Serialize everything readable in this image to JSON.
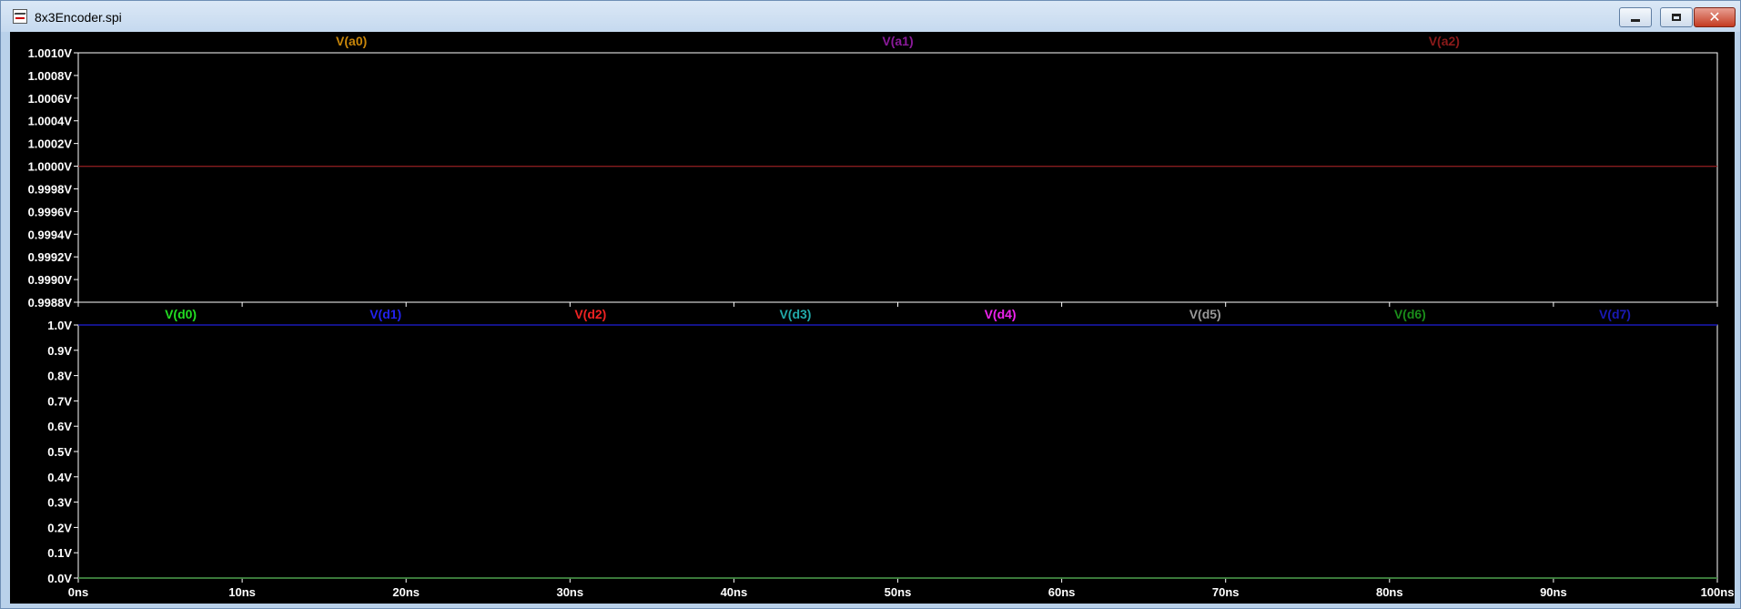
{
  "window": {
    "title": "8x3Encoder.spi",
    "icon": "ltspice-waveform-icon",
    "controls": {
      "minimize": "minimize-icon",
      "maximize": "maximize-icon",
      "close": "✕"
    }
  },
  "chart_data": [
    {
      "type": "line",
      "title": "",
      "xlabel": "",
      "ylabel": "",
      "x_unit": "ns",
      "y_unit": "V",
      "xlim": [
        0,
        100
      ],
      "ylim": [
        0.9988,
        1.001
      ],
      "xticks": [
        "0ns",
        "10ns",
        "20ns",
        "30ns",
        "40ns",
        "50ns",
        "60ns",
        "70ns",
        "80ns",
        "90ns",
        "100ns"
      ],
      "yticks": [
        "1.0010V",
        "1.0008V",
        "1.0006V",
        "1.0004V",
        "1.0002V",
        "1.0000V",
        "0.9998V",
        "0.9996V",
        "0.9994V",
        "0.9992V",
        "0.9990V",
        "0.9988V"
      ],
      "grid": false,
      "legend": "top",
      "series": [
        {
          "name": "V(a0)",
          "color": "#c8860a",
          "x": [
            0,
            100
          ],
          "y": [
            1.0,
            1.0
          ]
        },
        {
          "name": "V(a1)",
          "color": "#8b1a9b",
          "x": [
            0,
            100
          ],
          "y": [
            1.0,
            1.0
          ]
        },
        {
          "name": "V(a2)",
          "color": "#8b1a1a",
          "x": [
            0,
            100
          ],
          "y": [
            1.0,
            1.0
          ]
        }
      ]
    },
    {
      "type": "line",
      "title": "",
      "xlabel": "",
      "ylabel": "",
      "x_unit": "ns",
      "y_unit": "V",
      "xlim": [
        0,
        100
      ],
      "ylim": [
        0,
        1.0
      ],
      "xticks": [
        "0ns",
        "10ns",
        "20ns",
        "30ns",
        "40ns",
        "50ns",
        "60ns",
        "70ns",
        "80ns",
        "90ns",
        "100ns"
      ],
      "yticks": [
        "1.0V",
        "0.9V",
        "0.8V",
        "0.7V",
        "0.6V",
        "0.5V",
        "0.4V",
        "0.3V",
        "0.2V",
        "0.1V",
        "0.0V"
      ],
      "grid": false,
      "legend": "top",
      "series": [
        {
          "name": "V(d0)",
          "color": "#22dd22",
          "x": [
            0,
            100
          ],
          "y": [
            0.0,
            0.0
          ]
        },
        {
          "name": "V(d1)",
          "color": "#2222ee",
          "x": [
            0,
            100
          ],
          "y": [
            1.0,
            1.0
          ]
        },
        {
          "name": "V(d2)",
          "color": "#ee2222",
          "x": [
            0,
            100
          ],
          "y": [
            0.0,
            0.0
          ]
        },
        {
          "name": "V(d3)",
          "color": "#22aaaa",
          "x": [
            0,
            100
          ],
          "y": [
            0.0,
            0.0
          ]
        },
        {
          "name": "V(d4)",
          "color": "#ee22ee",
          "x": [
            0,
            100
          ],
          "y": [
            0.0,
            0.0
          ]
        },
        {
          "name": "V(d5)",
          "color": "#999999",
          "x": [
            0,
            100
          ],
          "y": [
            0.0,
            0.0
          ]
        },
        {
          "name": "V(d6)",
          "color": "#1a8c1a",
          "x": [
            0,
            100
          ],
          "y": [
            0.0,
            0.0
          ]
        },
        {
          "name": "V(d7)",
          "color": "#1a1ab5",
          "x": [
            0,
            100
          ],
          "y": [
            1.0,
            1.0
          ]
        }
      ]
    }
  ]
}
